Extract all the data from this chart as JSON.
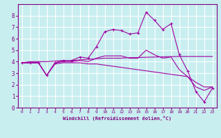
{
  "xlabel": "Windchill (Refroidissement éolien,°C)",
  "background_color": "#c8eef0",
  "grid_color": "#ffffff",
  "line_color": "#a000a0",
  "xlim": [
    -0.5,
    23.5
  ],
  "ylim": [
    0,
    9
  ],
  "xticks": [
    0,
    1,
    2,
    3,
    4,
    5,
    6,
    7,
    8,
    9,
    10,
    11,
    12,
    13,
    14,
    15,
    16,
    17,
    18,
    19,
    20,
    21,
    22,
    23
  ],
  "yticks": [
    0,
    1,
    2,
    3,
    4,
    5,
    6,
    7,
    8
  ],
  "line1_x": [
    0,
    1,
    2,
    3,
    4,
    5,
    6,
    7,
    8,
    9,
    10,
    11,
    12,
    13,
    14,
    15,
    16,
    17,
    18,
    19,
    20,
    21,
    22,
    23
  ],
  "line1_y": [
    3.9,
    4.0,
    4.0,
    4.0,
    4.05,
    4.1,
    4.1,
    4.15,
    4.2,
    4.25,
    4.3,
    4.3,
    4.3,
    4.35,
    4.35,
    4.38,
    4.4,
    4.42,
    4.44,
    4.45,
    4.45,
    4.45,
    4.45,
    4.45
  ],
  "line2_x": [
    0,
    1,
    2,
    3,
    4,
    5,
    6,
    7,
    8,
    9,
    10,
    11,
    12,
    13,
    14,
    15,
    16,
    17,
    18,
    19,
    20,
    21,
    22,
    23
  ],
  "line2_y": [
    3.9,
    3.9,
    3.9,
    2.8,
    3.9,
    4.1,
    4.1,
    4.4,
    4.3,
    5.3,
    6.6,
    6.8,
    6.7,
    6.4,
    6.5,
    8.3,
    7.6,
    6.8,
    7.3,
    4.6,
    3.2,
    1.4,
    0.5,
    1.7
  ],
  "line3_x": [
    0,
    1,
    2,
    3,
    4,
    5,
    6,
    7,
    8,
    9,
    10,
    11,
    12,
    13,
    14,
    15,
    16,
    17,
    18,
    19,
    20,
    21,
    22,
    23
  ],
  "line3_y": [
    3.9,
    3.9,
    3.9,
    2.8,
    3.9,
    4.0,
    4.0,
    4.1,
    4.0,
    4.3,
    4.5,
    4.5,
    4.5,
    4.3,
    4.3,
    5.0,
    4.6,
    4.3,
    4.4,
    3.3,
    2.7,
    1.8,
    1.5,
    1.8
  ],
  "line4_x": [
    0,
    1,
    2,
    3,
    4,
    5,
    6,
    7,
    8,
    9,
    10,
    11,
    12,
    13,
    14,
    15,
    16,
    17,
    18,
    19,
    20,
    21,
    22,
    23
  ],
  "line4_y": [
    3.9,
    3.9,
    3.9,
    2.8,
    3.8,
    3.9,
    3.9,
    3.9,
    3.8,
    3.8,
    3.7,
    3.6,
    3.5,
    3.4,
    3.3,
    3.2,
    3.1,
    3.0,
    2.9,
    2.8,
    2.7,
    2.2,
    1.8,
    1.8
  ]
}
